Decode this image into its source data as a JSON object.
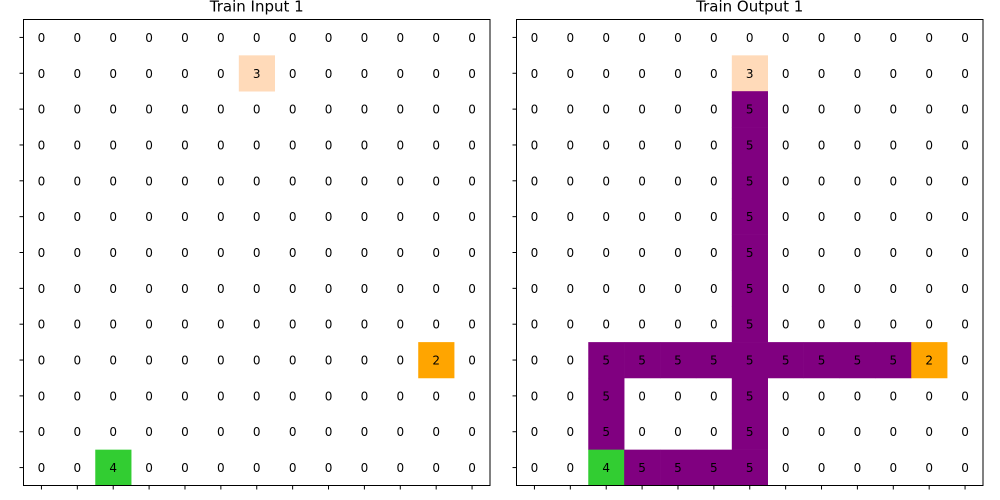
{
  "chart_data": [
    {
      "type": "heatmap",
      "title": "Train Input 1",
      "grid": [
        [
          0,
          0,
          0,
          0,
          0,
          0,
          0,
          0,
          0,
          0,
          0,
          0,
          0
        ],
        [
          0,
          0,
          0,
          0,
          0,
          0,
          3,
          0,
          0,
          0,
          0,
          0,
          0
        ],
        [
          0,
          0,
          0,
          0,
          0,
          0,
          0,
          0,
          0,
          0,
          0,
          0,
          0
        ],
        [
          0,
          0,
          0,
          0,
          0,
          0,
          0,
          0,
          0,
          0,
          0,
          0,
          0
        ],
        [
          0,
          0,
          0,
          0,
          0,
          0,
          0,
          0,
          0,
          0,
          0,
          0,
          0
        ],
        [
          0,
          0,
          0,
          0,
          0,
          0,
          0,
          0,
          0,
          0,
          0,
          0,
          0
        ],
        [
          0,
          0,
          0,
          0,
          0,
          0,
          0,
          0,
          0,
          0,
          0,
          0,
          0
        ],
        [
          0,
          0,
          0,
          0,
          0,
          0,
          0,
          0,
          0,
          0,
          0,
          0,
          0
        ],
        [
          0,
          0,
          0,
          0,
          0,
          0,
          0,
          0,
          0,
          0,
          0,
          0,
          0
        ],
        [
          0,
          0,
          0,
          0,
          0,
          0,
          0,
          0,
          0,
          0,
          0,
          2,
          0
        ],
        [
          0,
          0,
          0,
          0,
          0,
          0,
          0,
          0,
          0,
          0,
          0,
          0,
          0
        ],
        [
          0,
          0,
          0,
          0,
          0,
          0,
          0,
          0,
          0,
          0,
          0,
          0,
          0
        ],
        [
          0,
          0,
          4,
          0,
          0,
          0,
          0,
          0,
          0,
          0,
          0,
          0,
          0
        ]
      ]
    },
    {
      "type": "heatmap",
      "title": "Train Output 1",
      "grid": [
        [
          0,
          0,
          0,
          0,
          0,
          0,
          0,
          0,
          0,
          0,
          0,
          0,
          0
        ],
        [
          0,
          0,
          0,
          0,
          0,
          0,
          3,
          0,
          0,
          0,
          0,
          0,
          0
        ],
        [
          0,
          0,
          0,
          0,
          0,
          0,
          5,
          0,
          0,
          0,
          0,
          0,
          0
        ],
        [
          0,
          0,
          0,
          0,
          0,
          0,
          5,
          0,
          0,
          0,
          0,
          0,
          0
        ],
        [
          0,
          0,
          0,
          0,
          0,
          0,
          5,
          0,
          0,
          0,
          0,
          0,
          0
        ],
        [
          0,
          0,
          0,
          0,
          0,
          0,
          5,
          0,
          0,
          0,
          0,
          0,
          0
        ],
        [
          0,
          0,
          0,
          0,
          0,
          0,
          5,
          0,
          0,
          0,
          0,
          0,
          0
        ],
        [
          0,
          0,
          0,
          0,
          0,
          0,
          5,
          0,
          0,
          0,
          0,
          0,
          0
        ],
        [
          0,
          0,
          0,
          0,
          0,
          0,
          5,
          0,
          0,
          0,
          0,
          0,
          0
        ],
        [
          0,
          0,
          5,
          5,
          5,
          5,
          5,
          5,
          5,
          5,
          5,
          2,
          0
        ],
        [
          0,
          0,
          5,
          0,
          0,
          0,
          5,
          0,
          0,
          0,
          0,
          0,
          0
        ],
        [
          0,
          0,
          5,
          0,
          0,
          0,
          5,
          0,
          0,
          0,
          0,
          0,
          0
        ],
        [
          0,
          0,
          4,
          5,
          5,
          5,
          5,
          0,
          0,
          0,
          0,
          0,
          0
        ]
      ]
    }
  ],
  "colors": {
    "0": "#ffffff",
    "2": "#ffa500",
    "3": "#ffdab9",
    "4": "#32cd32",
    "5": "#800080"
  }
}
